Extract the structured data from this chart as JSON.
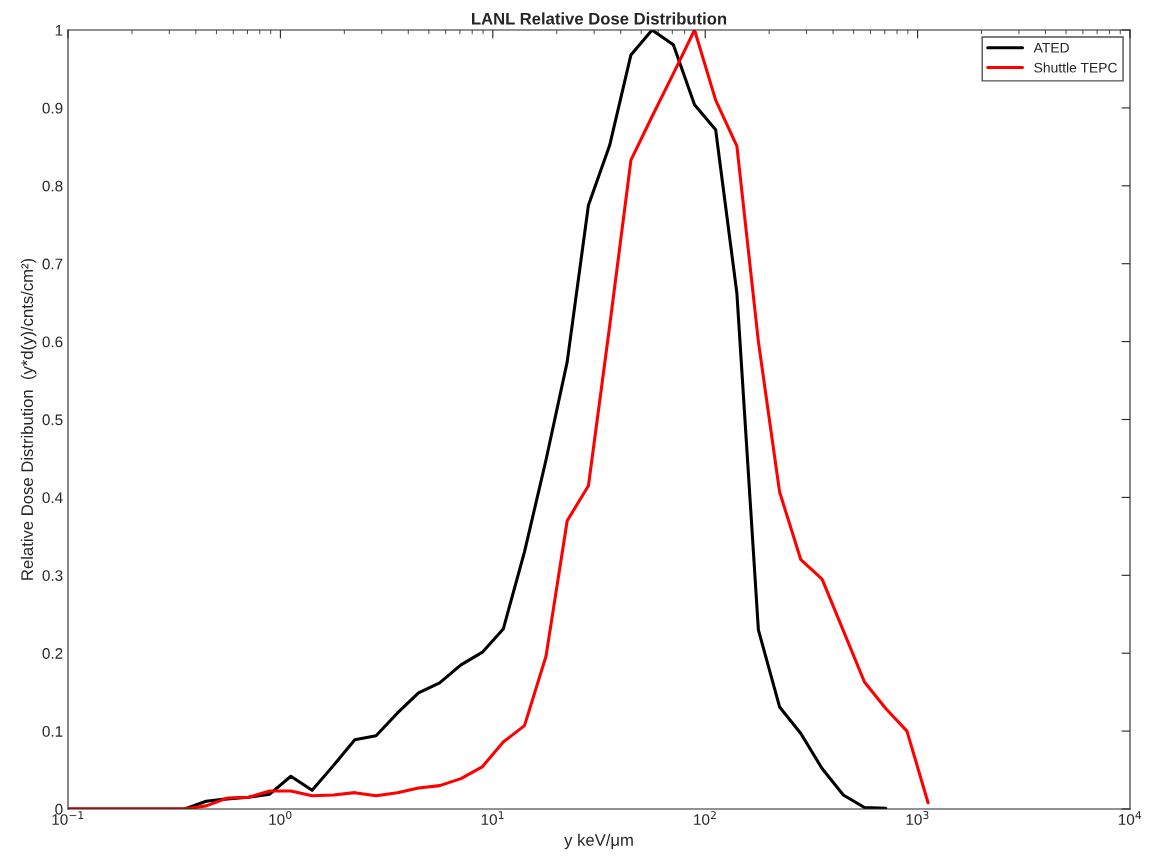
{
  "chart_data": {
    "type": "line",
    "title": "LANL Relative Dose Distribution",
    "xlabel": "y keV/μm",
    "ylabel": "Relative Dose Distribution  (y*d(y)/cnts/cm²)",
    "log": "x",
    "xlim": [
      0.1,
      10000
    ],
    "ylim": [
      0,
      1
    ],
    "xticks": [
      {
        "value": 0.1,
        "label": "10$^{−1}$"
      },
      {
        "value": 1,
        "label": "10$^{0}$"
      },
      {
        "value": 10,
        "label": "10$^{1}$"
      },
      {
        "value": 100,
        "label": "10$^{2}$"
      },
      {
        "value": 1000,
        "label": "10$^{3}$"
      },
      {
        "value": 10000,
        "label": "10$^{4}$"
      }
    ],
    "yticks": [
      0,
      0.1,
      0.2,
      0.3,
      0.4,
      0.5,
      0.6,
      0.7,
      0.8,
      0.9,
      1
    ],
    "grid": false,
    "legend": "top right",
    "line_style": "solid",
    "marker": "none",
    "series": [
      {
        "name": "ATED",
        "color": "#000000",
        "x": [
          0.1,
          0.355,
          0.447,
          0.562,
          0.708,
          0.891,
          1.12,
          1.41,
          1.78,
          2.24,
          2.82,
          3.55,
          4.47,
          5.62,
          7.08,
          8.91,
          11.2,
          14.1,
          17.8,
          22.4,
          28.2,
          35.5,
          44.7,
          56.2,
          70.8,
          89.1,
          112,
          141,
          178,
          224,
          282,
          355,
          447,
          562,
          708
        ],
        "values": [
          0,
          0,
          0.01,
          0.013,
          0.015,
          0.019,
          0.042,
          0.024,
          0.056,
          0.089,
          0.094,
          0.123,
          0.149,
          0.162,
          0.185,
          0.201,
          0.231,
          0.33,
          0.448,
          0.574,
          0.775,
          0.852,
          0.968,
          1.0,
          0.981,
          0.904,
          0.872,
          0.662,
          0.23,
          0.131,
          0.097,
          0.052,
          0.018,
          0.002,
          0.001
        ]
      },
      {
        "name": "Shuttle TEPC",
        "color": "#ff0000",
        "x": [
          0.1,
          0.355,
          0.447,
          0.562,
          0.708,
          0.891,
          1.12,
          1.41,
          1.78,
          2.24,
          2.82,
          3.55,
          4.47,
          5.62,
          7.08,
          8.91,
          11.2,
          14.1,
          17.8,
          22.4,
          28.2,
          35.5,
          44.7,
          56.2,
          70.8,
          89.1,
          112,
          141,
          178,
          224,
          282,
          355,
          447,
          562,
          708,
          891,
          1120
        ],
        "values": [
          0,
          0,
          0.004,
          0.014,
          0.015,
          0.023,
          0.023,
          0.017,
          0.018,
          0.021,
          0.017,
          0.021,
          0.027,
          0.03,
          0.039,
          0.054,
          0.086,
          0.107,
          0.196,
          0.37,
          0.415,
          0.62,
          0.833,
          0.889,
          0.944,
          1.0,
          0.91,
          0.851,
          0.6,
          0.407,
          0.32,
          0.295,
          0.229,
          0.163,
          0.129,
          0.1,
          0.008
        ]
      }
    ]
  }
}
